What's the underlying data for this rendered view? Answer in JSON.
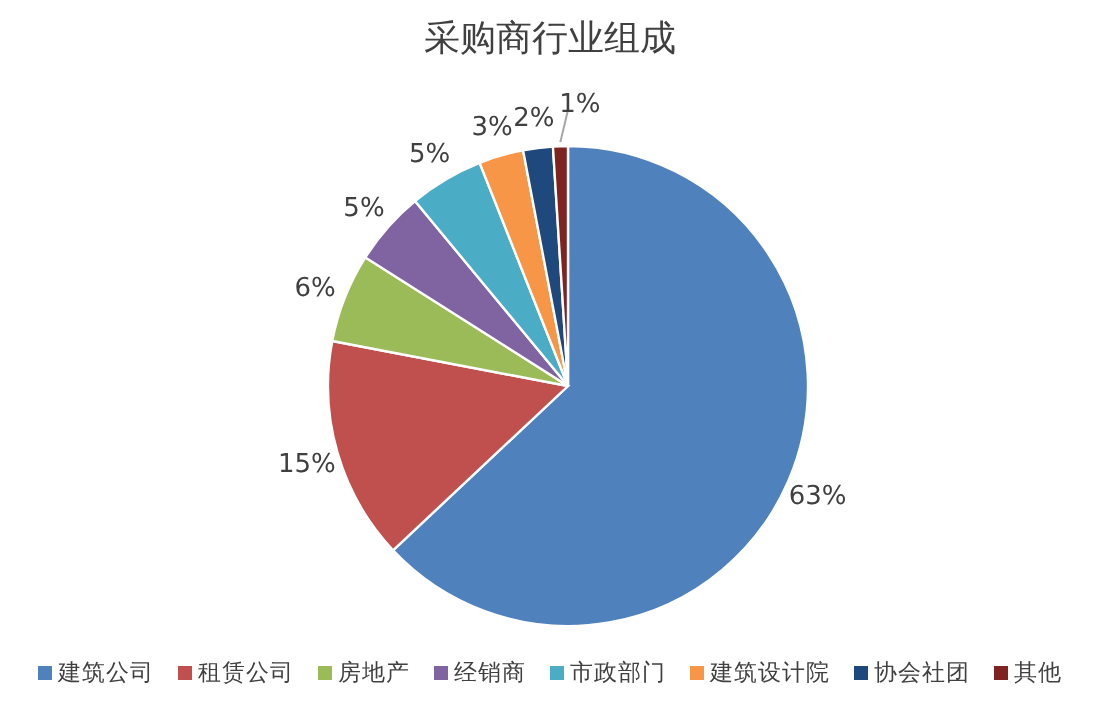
{
  "chart_data": {
    "type": "pie",
    "title": "采购商行业组成",
    "categories": [
      "建筑公司",
      "租赁公司",
      "房地产",
      "经销商",
      "市政部门",
      "建筑设计院",
      "协会社团",
      "其他"
    ],
    "values": [
      63,
      15,
      6,
      5,
      5,
      3,
      2,
      1
    ],
    "value_labels": [
      "63%",
      "15%",
      "6%",
      "5%",
      "5%",
      "3%",
      "2%",
      "1%"
    ],
    "colors": [
      "#4f81bd",
      "#c0504d",
      "#9bbb59",
      "#8064a2",
      "#4bacc6",
      "#f79646",
      "#1f497d",
      "#7f2320"
    ],
    "legend": "bottom"
  }
}
